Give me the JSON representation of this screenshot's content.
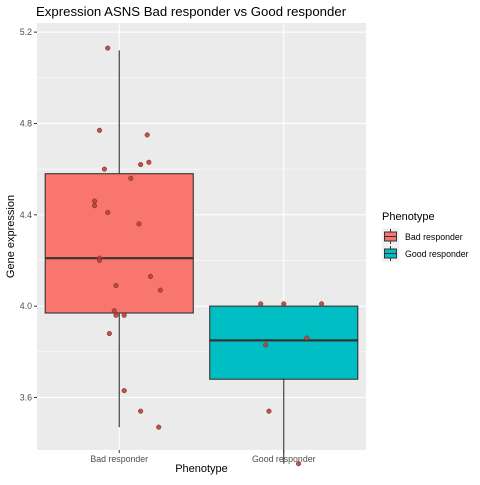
{
  "chart_data": {
    "type": "boxplot",
    "title": "Expression ASNS Bad responder vs Good responder",
    "xlabel": "Phenotype",
    "ylabel": "Gene expression",
    "ylim": [
      3.37,
      5.24
    ],
    "yticks": [
      3.6,
      4.0,
      4.4,
      4.8,
      5.2
    ],
    "grid": true,
    "legend": {
      "title": "Phenotype",
      "position": "right",
      "entries": [
        "Bad responder",
        "Good responder"
      ]
    },
    "categories": [
      "Bad responder",
      "Good responder"
    ],
    "colors": {
      "Bad responder": "#f8766d",
      "Good responder": "#00bfc4",
      "panel": "#ebebeb",
      "grid_major": "#ffffff",
      "point": "#b5443a"
    },
    "boxes": [
      {
        "name": "Bad responder",
        "min": 3.47,
        "q1": 3.97,
        "median": 4.21,
        "q3": 4.58,
        "max": 5.12
      },
      {
        "name": "Good responder",
        "min": 3.31,
        "q1": 3.68,
        "median": 3.85,
        "q3": 4.0,
        "max": 4.01
      }
    ],
    "points": [
      {
        "group": "Bad responder",
        "jitter": -0.07,
        "y": 5.13
      },
      {
        "group": "Bad responder",
        "jitter": -0.12,
        "y": 4.77
      },
      {
        "group": "Bad responder",
        "jitter": 0.17,
        "y": 4.75
      },
      {
        "group": "Bad responder",
        "jitter": 0.18,
        "y": 4.63
      },
      {
        "group": "Bad responder",
        "jitter": 0.13,
        "y": 4.62
      },
      {
        "group": "Bad responder",
        "jitter": -0.09,
        "y": 4.6
      },
      {
        "group": "Bad responder",
        "jitter": 0.07,
        "y": 4.56
      },
      {
        "group": "Bad responder",
        "jitter": -0.15,
        "y": 4.46
      },
      {
        "group": "Bad responder",
        "jitter": -0.15,
        "y": 4.44
      },
      {
        "group": "Bad responder",
        "jitter": -0.07,
        "y": 4.41
      },
      {
        "group": "Bad responder",
        "jitter": 0.12,
        "y": 4.36
      },
      {
        "group": "Bad responder",
        "jitter": -0.12,
        "y": 4.21
      },
      {
        "group": "Bad responder",
        "jitter": -0.12,
        "y": 4.2
      },
      {
        "group": "Bad responder",
        "jitter": 0.19,
        "y": 4.13
      },
      {
        "group": "Bad responder",
        "jitter": -0.02,
        "y": 4.09
      },
      {
        "group": "Bad responder",
        "jitter": 0.25,
        "y": 4.07
      },
      {
        "group": "Bad responder",
        "jitter": -0.03,
        "y": 3.98
      },
      {
        "group": "Bad responder",
        "jitter": -0.02,
        "y": 3.96
      },
      {
        "group": "Bad responder",
        "jitter": 0.03,
        "y": 3.96
      },
      {
        "group": "Bad responder",
        "jitter": -0.06,
        "y": 3.88
      },
      {
        "group": "Bad responder",
        "jitter": 0.03,
        "y": 3.63
      },
      {
        "group": "Bad responder",
        "jitter": 0.13,
        "y": 3.54
      },
      {
        "group": "Bad responder",
        "jitter": 0.24,
        "y": 3.47
      },
      {
        "group": "Good responder",
        "jitter": -0.14,
        "y": 4.01
      },
      {
        "group": "Good responder",
        "jitter": 0.0,
        "y": 4.01
      },
      {
        "group": "Good responder",
        "jitter": 0.23,
        "y": 4.01
      },
      {
        "group": "Good responder",
        "jitter": 0.14,
        "y": 3.86
      },
      {
        "group": "Good responder",
        "jitter": -0.11,
        "y": 3.83
      },
      {
        "group": "Good responder",
        "jitter": -0.09,
        "y": 3.54
      },
      {
        "group": "Good responder",
        "jitter": 0.09,
        "y": 3.31
      }
    ]
  }
}
